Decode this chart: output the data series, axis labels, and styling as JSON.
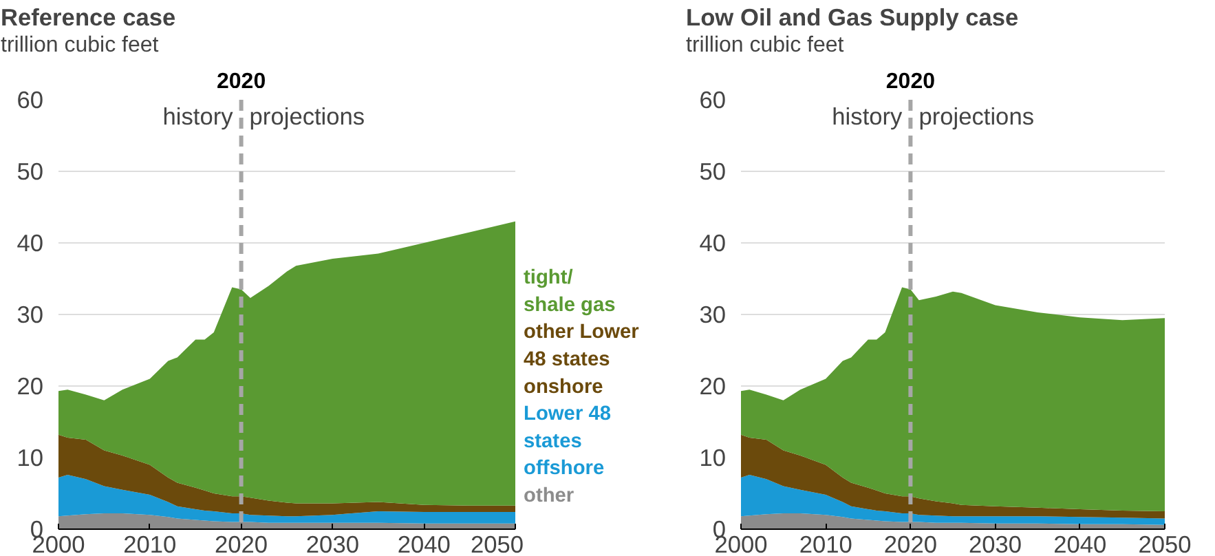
{
  "chart_data": [
    {
      "type": "area",
      "title": "Reference case",
      "ylabel": "trillion cubic feet",
      "stacked": true,
      "x": [
        2000,
        2001,
        2003,
        2005,
        2007,
        2010,
        2012,
        2013,
        2015,
        2016,
        2017,
        2019,
        2020,
        2021,
        2023,
        2025,
        2026,
        2030,
        2035,
        2040,
        2045,
        2050
      ],
      "series": [
        {
          "name": "other",
          "color": "#8c8c8c",
          "values": [
            1.8,
            1.9,
            2.1,
            2.2,
            2.2,
            2.0,
            1.7,
            1.5,
            1.3,
            1.2,
            1.1,
            1.0,
            1.0,
            1.0,
            0.9,
            0.9,
            0.9,
            0.9,
            0.9,
            0.8,
            0.8,
            0.8
          ]
        },
        {
          "name": "Lower 48\nstates\noffshore",
          "color": "#1a9ad6",
          "values": [
            5.4,
            5.7,
            4.9,
            3.8,
            3.3,
            2.8,
            2.1,
            1.7,
            1.5,
            1.4,
            1.4,
            1.2,
            1.2,
            1.0,
            1.0,
            0.9,
            0.9,
            1.1,
            1.6,
            1.6,
            1.6,
            1.6
          ]
        },
        {
          "name": "other Lower\n48 states\nonshore",
          "color": "#6b4a0c",
          "values": [
            6.0,
            5.2,
            5.5,
            5.0,
            4.8,
            4.2,
            3.4,
            3.3,
            3.0,
            2.8,
            2.5,
            2.4,
            2.4,
            2.4,
            2.1,
            1.9,
            1.8,
            1.6,
            1.3,
            1.0,
            0.9,
            0.9
          ]
        },
        {
          "name": "tight/\nshale gas",
          "color": "#5a9a32",
          "values": [
            6.1,
            6.7,
            6.3,
            7.0,
            9.2,
            12.0,
            16.3,
            17.5,
            20.7,
            21.1,
            22.5,
            29.2,
            28.9,
            27.9,
            30.0,
            32.3,
            33.2,
            34.2,
            34.7,
            36.6,
            38.2,
            39.7
          ]
        }
      ],
      "xlim": [
        2000,
        2050
      ],
      "xticks": [
        2000,
        2010,
        2020,
        2030,
        2040,
        2050
      ],
      "ylim": [
        0,
        60
      ],
      "yticks": [
        0,
        10,
        20,
        30,
        40,
        50,
        60
      ],
      "grid": "y",
      "legend": false,
      "ref_lines": [
        {
          "axis": "x",
          "value": 2020,
          "label": "2020",
          "color": "#a6a6a6",
          "line_style": "dashed"
        }
      ],
      "annotations": [
        "history",
        "projections"
      ]
    },
    {
      "type": "area",
      "title": "Low Oil and Gas Supply case",
      "ylabel": "trillion cubic feet",
      "stacked": true,
      "x": [
        2000,
        2001,
        2003,
        2005,
        2007,
        2010,
        2012,
        2013,
        2015,
        2016,
        2017,
        2019,
        2020,
        2021,
        2023,
        2025,
        2026,
        2030,
        2035,
        2040,
        2045,
        2050
      ],
      "series": [
        {
          "color": "#8c8c8c",
          "values": [
            1.8,
            1.9,
            2.1,
            2.2,
            2.2,
            2.0,
            1.7,
            1.5,
            1.3,
            1.2,
            1.1,
            1.0,
            1.0,
            1.0,
            0.9,
            0.9,
            0.9,
            0.8,
            0.8,
            0.7,
            0.7,
            0.6
          ]
        },
        {
          "color": "#1a9ad6",
          "values": [
            5.4,
            5.7,
            4.9,
            3.8,
            3.3,
            2.8,
            2.1,
            1.7,
            1.5,
            1.4,
            1.4,
            1.2,
            1.2,
            1.0,
            1.0,
            0.9,
            0.9,
            1.0,
            1.0,
            1.0,
            0.9,
            0.9
          ]
        },
        {
          "color": "#6b4a0c",
          "values": [
            6.0,
            5.2,
            5.5,
            5.0,
            4.8,
            4.2,
            3.4,
            3.3,
            3.0,
            2.8,
            2.5,
            2.4,
            2.4,
            2.3,
            2.0,
            1.8,
            1.6,
            1.4,
            1.2,
            1.1,
            1.0,
            1.0
          ]
        },
        {
          "color": "#5a9a32",
          "values": [
            6.1,
            6.7,
            6.3,
            7.0,
            9.2,
            12.0,
            16.3,
            17.5,
            20.7,
            21.1,
            22.5,
            29.2,
            28.9,
            27.7,
            28.6,
            29.6,
            29.6,
            28.1,
            27.3,
            26.8,
            26.6,
            27.0
          ]
        }
      ],
      "xlim": [
        2000,
        2050
      ],
      "xticks": [
        2000,
        2010,
        2020,
        2030,
        2040,
        2050
      ],
      "ylim": [
        0,
        60
      ],
      "yticks": [
        0,
        10,
        20,
        30,
        40,
        50,
        60
      ],
      "grid": "y",
      "legend": false,
      "ref_lines": [
        {
          "axis": "x",
          "value": 2020,
          "label": "2020",
          "color": "#a6a6a6",
          "line_style": "dashed"
        }
      ],
      "annotations": [
        "history",
        "projections"
      ]
    }
  ]
}
